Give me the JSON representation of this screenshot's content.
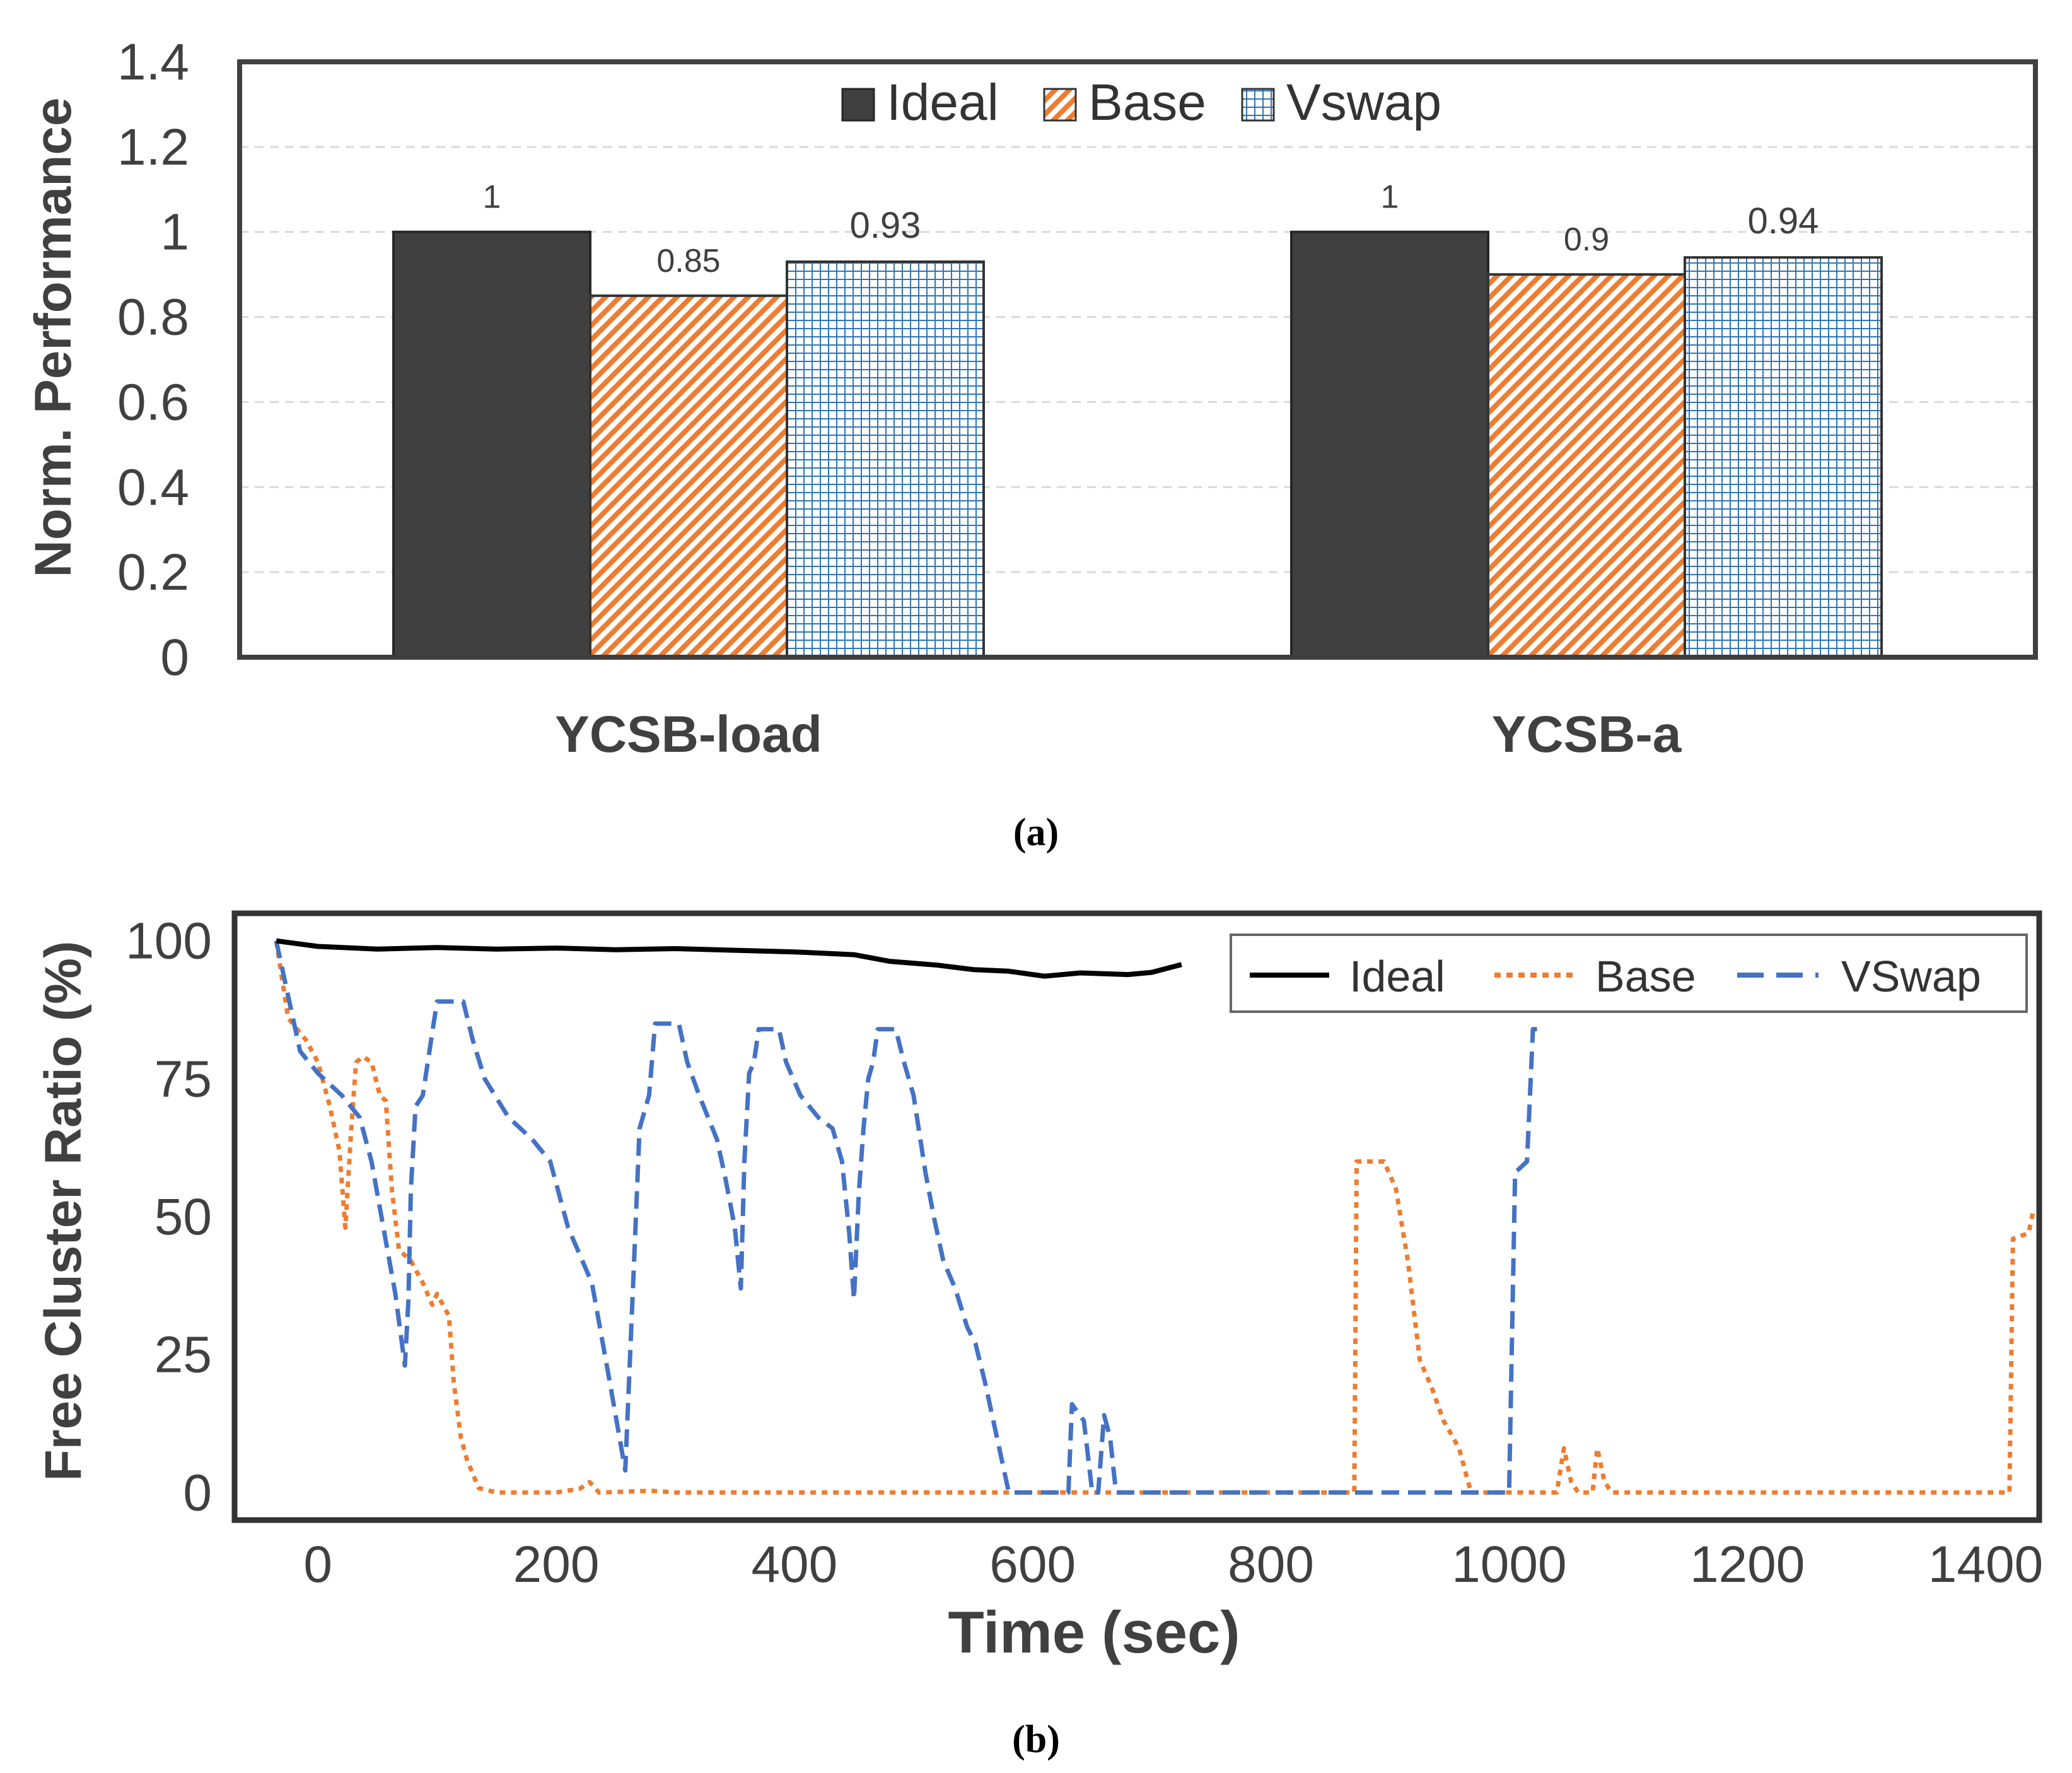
{
  "chart_data": [
    {
      "type": "bar",
      "panel_label": "(a)",
      "title": "",
      "xlabel": "",
      "ylabel": "Norm. Performance",
      "ylim": [
        0,
        1.4
      ],
      "yticks": [
        "0",
        "0.2",
        "0.4",
        "0.6",
        "0.8",
        "1",
        "1.2",
        "1.4"
      ],
      "grid": true,
      "legend_position": "top-center",
      "categories": [
        "YCSB-load",
        "YCSB-a"
      ],
      "series": [
        {
          "name": "Ideal",
          "values": [
            1,
            1
          ],
          "labels": [
            "1",
            "1"
          ],
          "color": "#404040",
          "pattern": "solid"
        },
        {
          "name": "Base",
          "values": [
            0.85,
            0.9
          ],
          "labels": [
            "0.85",
            "0.9"
          ],
          "color": "#ED7D31",
          "pattern": "diagonal-hatch"
        },
        {
          "name": "Vswap",
          "values": [
            0.93,
            0.94
          ],
          "labels": [
            "0.93",
            "0.94"
          ],
          "color": "#2E75B6",
          "pattern": "grid"
        }
      ]
    },
    {
      "type": "line",
      "panel_label": "(b)",
      "title": "",
      "xlabel": "Time (sec)",
      "ylabel": "Free Cluster Ratio (%)",
      "xlim": [
        -70,
        1445
      ],
      "ylim": [
        -5,
        105
      ],
      "xticks": [
        "0",
        "200",
        "400",
        "600",
        "800",
        "1000",
        "1200",
        "1400"
      ],
      "yticks": [
        "0",
        "25",
        "50",
        "75",
        "100"
      ],
      "grid": false,
      "legend_position": "top-right",
      "series": [
        {
          "name": "Ideal",
          "color": "#000000",
          "style": "solid",
          "points": [
            [
              -35,
              100
            ],
            [
              0,
              99
            ],
            [
              50,
              98.5
            ],
            [
              100,
              98.8
            ],
            [
              150,
              98.5
            ],
            [
              200,
              98.7
            ],
            [
              250,
              98.4
            ],
            [
              300,
              98.6
            ],
            [
              350,
              98.3
            ],
            [
              400,
              98
            ],
            [
              450,
              97.5
            ],
            [
              480,
              96.3
            ],
            [
              520,
              95.6
            ],
            [
              550,
              94.8
            ],
            [
              580,
              94.5
            ],
            [
              610,
              93.6
            ],
            [
              640,
              94.2
            ],
            [
              680,
              93.9
            ],
            [
              700,
              94.3
            ],
            [
              725,
              95.7
            ]
          ]
        },
        {
          "name": "Base",
          "color": "#ED7D31",
          "style": "dotted",
          "points": [
            [
              -35,
              100
            ],
            [
              -25,
              86
            ],
            [
              -10,
              82
            ],
            [
              0,
              78
            ],
            [
              10,
              70
            ],
            [
              18,
              62
            ],
            [
              23,
              48
            ],
            [
              28,
              66
            ],
            [
              32,
              78
            ],
            [
              38,
              79
            ],
            [
              45,
              78
            ],
            [
              52,
              72
            ],
            [
              57,
              71
            ],
            [
              62,
              55
            ],
            [
              68,
              44
            ],
            [
              78,
              42
            ],
            [
              88,
              38
            ],
            [
              96,
              34
            ],
            [
              100,
              36
            ],
            [
              110,
              32
            ],
            [
              114,
              20
            ],
            [
              120,
              10
            ],
            [
              125,
              6
            ],
            [
              135,
              0.8
            ],
            [
              150,
              0
            ],
            [
              200,
              0
            ],
            [
              220,
              0.7
            ],
            [
              228,
              1.9
            ],
            [
              236,
              0
            ],
            [
              280,
              0.3
            ],
            [
              300,
              0
            ],
            [
              650,
              0
            ],
            [
              870,
              0
            ],
            [
              872,
              60
            ],
            [
              895,
              60
            ],
            [
              905,
              55
            ],
            [
              915,
              42
            ],
            [
              925,
              24
            ],
            [
              935,
              19
            ],
            [
              945,
              13
            ],
            [
              958,
              8
            ],
            [
              968,
              0
            ],
            [
              1040,
              0
            ],
            [
              1046,
              8
            ],
            [
              1052,
              2
            ],
            [
              1058,
              0
            ],
            [
              1070,
              0
            ],
            [
              1074,
              8
            ],
            [
              1080,
              2
            ],
            [
              1086,
              0
            ],
            [
              1420,
              0
            ],
            [
              1423,
              46
            ],
            [
              1436,
              47
            ],
            [
              1440,
              51
            ]
          ]
        },
        {
          "name": "VSwap",
          "color": "#4472C4",
          "style": "dashed",
          "points": [
            [
              -35,
              100
            ],
            [
              -25,
              90
            ],
            [
              -15,
              80
            ],
            [
              0,
              76
            ],
            [
              20,
              72
            ],
            [
              35,
              68
            ],
            [
              45,
              60
            ],
            [
              55,
              48
            ],
            [
              65,
              36
            ],
            [
              73,
              23
            ],
            [
              76,
              35
            ],
            [
              78,
              55
            ],
            [
              82,
              70
            ],
            [
              88,
              72
            ],
            [
              95,
              82
            ],
            [
              100,
              89
            ],
            [
              122,
              89
            ],
            [
              130,
              82
            ],
            [
              140,
              75
            ],
            [
              160,
              68
            ],
            [
              180,
              64
            ],
            [
              195,
              60
            ],
            [
              210,
              48
            ],
            [
              230,
              38
            ],
            [
              245,
              20
            ],
            [
              258,
              4
            ],
            [
              265,
              40
            ],
            [
              270,
              66
            ],
            [
              278,
              72
            ],
            [
              283,
              85
            ],
            [
              303,
              85
            ],
            [
              310,
              78
            ],
            [
              320,
              72
            ],
            [
              335,
              64
            ],
            [
              342,
              57
            ],
            [
              350,
              48
            ],
            [
              355,
              37
            ],
            [
              358,
              60
            ],
            [
              362,
              76
            ],
            [
              366,
              78
            ],
            [
              370,
              84
            ],
            [
              387,
              84
            ],
            [
              393,
              78
            ],
            [
              405,
              72
            ],
            [
              420,
              68
            ],
            [
              432,
              66
            ],
            [
              440,
              60
            ],
            [
              446,
              47
            ],
            [
              450,
              35
            ],
            [
              454,
              54
            ],
            [
              458,
              66
            ],
            [
              462,
              75
            ],
            [
              466,
              78
            ],
            [
              470,
              84
            ],
            [
              485,
              84
            ],
            [
              492,
              78
            ],
            [
              500,
              72
            ],
            [
              510,
              58
            ],
            [
              517,
              50
            ],
            [
              525,
              42
            ],
            [
              535,
              37
            ],
            [
              545,
              30
            ],
            [
              552,
              27
            ],
            [
              560,
              20
            ],
            [
              570,
              10
            ],
            [
              580,
              0
            ],
            [
              630,
              0
            ],
            [
              633,
              16
            ],
            [
              643,
              13
            ],
            [
              650,
              0
            ],
            [
              655,
              0
            ],
            [
              660,
              14
            ],
            [
              665,
              10
            ],
            [
              670,
              0
            ],
            [
              1000,
              0
            ],
            [
              1005,
              58
            ],
            [
              1015,
              60
            ],
            [
              1020,
              84
            ],
            [
              1030,
              84
            ]
          ]
        }
      ]
    }
  ]
}
